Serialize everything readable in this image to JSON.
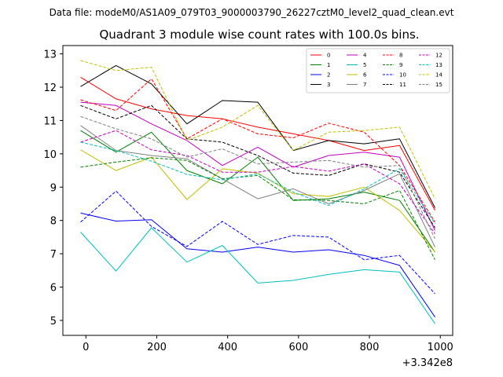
{
  "chart_data": {
    "type": "line",
    "header": "Data file: modeM0/AS1A09_079T03_9000003790_26227cztM0_level2_quad_clean.evt",
    "title": "Quadrant 3 module wise count rates with 100.0s bins.",
    "xlabel": "",
    "ylabel": "",
    "x_offset_label": "+3.342e8",
    "xlim": [
      -65,
      1035
    ],
    "ylim": [
      4.55,
      13.25
    ],
    "x_ticks": [
      0,
      200,
      400,
      600,
      800,
      1000
    ],
    "y_ticks": [
      5,
      6,
      7,
      8,
      9,
      10,
      11,
      12,
      13
    ],
    "x": [
      -15,
      85,
      185,
      285,
      385,
      485,
      585,
      685,
      785,
      885,
      985
    ],
    "legend_location": "upper right",
    "series": [
      {
        "name": "0",
        "color": "#ff0000",
        "dash": "solid",
        "values": [
          12.3,
          11.65,
          11.35,
          11.15,
          11.05,
          10.8,
          10.6,
          10.4,
          10.1,
          10.25,
          8.3
        ]
      },
      {
        "name": "1",
        "color": "#008000",
        "dash": "solid",
        "values": [
          10.7,
          10.05,
          10.65,
          9.5,
          9.1,
          9.9,
          8.6,
          8.65,
          8.85,
          8.6,
          7.05
        ]
      },
      {
        "name": "2",
        "color": "#0000ff",
        "dash": "solid",
        "values": [
          8.22,
          7.98,
          8.02,
          7.15,
          7.05,
          7.2,
          7.05,
          7.12,
          6.95,
          6.65,
          5.1
        ]
      },
      {
        "name": "3",
        "color": "#000000",
        "dash": "solid",
        "values": [
          12.02,
          12.65,
          12.1,
          10.9,
          11.6,
          11.55,
          10.1,
          10.4,
          10.3,
          10.45,
          8.38
        ]
      },
      {
        "name": "4",
        "color": "#bf00bf",
        "dash": "solid",
        "values": [
          11.55,
          11.45,
          10.9,
          10.4,
          9.65,
          10.2,
          9.6,
          9.95,
          10.05,
          9.9,
          7.7
        ]
      },
      {
        "name": "5",
        "color": "#00bfbf",
        "dash": "solid",
        "values": [
          7.65,
          6.48,
          7.78,
          6.75,
          7.25,
          6.12,
          6.2,
          6.38,
          6.52,
          6.45,
          4.9
        ]
      },
      {
        "name": "6",
        "color": "#bfbf00",
        "dash": "solid",
        "values": [
          10.12,
          9.5,
          9.9,
          8.63,
          9.55,
          9.42,
          8.8,
          8.72,
          9.0,
          8.3,
          7.05
        ]
      },
      {
        "name": "7",
        "color": "#808080",
        "dash": "solid",
        "values": [
          10.85,
          10.1,
          9.95,
          9.85,
          9.25,
          8.65,
          8.95,
          8.5,
          8.9,
          9.4,
          7.2
        ]
      },
      {
        "name": "8",
        "color": "#ff0000",
        "dash": "dashed",
        "values": [
          11.62,
          11.3,
          12.25,
          10.45,
          11.05,
          10.6,
          10.48,
          10.92,
          10.65,
          9.65,
          7.95
        ]
      },
      {
        "name": "9",
        "color": "#008000",
        "dash": "dashed",
        "values": [
          9.6,
          9.75,
          9.88,
          9.8,
          9.25,
          9.35,
          8.62,
          8.6,
          8.5,
          8.9,
          6.82
        ]
      },
      {
        "name": "10",
        "color": "#0000ff",
        "dash": "dashed",
        "values": [
          7.95,
          8.88,
          7.82,
          7.22,
          7.97,
          7.28,
          7.55,
          7.5,
          6.82,
          6.95,
          5.8
        ]
      },
      {
        "name": "11",
        "color": "#000000",
        "dash": "dashed",
        "values": [
          11.45,
          11.05,
          11.45,
          10.45,
          10.35,
          9.95,
          9.42,
          9.35,
          9.7,
          9.45,
          7.78
        ]
      },
      {
        "name": "12",
        "color": "#bf00bf",
        "dash": "dashed",
        "values": [
          10.35,
          10.7,
          10.12,
          9.95,
          9.45,
          9.45,
          9.62,
          9.48,
          9.7,
          9.1,
          7.6
        ]
      },
      {
        "name": "13",
        "color": "#00bfbf",
        "dash": "dashed",
        "values": [
          10.35,
          10.1,
          9.78,
          9.38,
          9.22,
          9.4,
          8.85,
          8.45,
          8.95,
          9.55,
          7.9
        ]
      },
      {
        "name": "14",
        "color": "#bfbf00",
        "dash": "dashed",
        "values": [
          12.8,
          12.5,
          12.6,
          10.4,
          10.8,
          11.45,
          10.1,
          10.65,
          10.7,
          10.8,
          8.65
        ]
      },
      {
        "name": "15",
        "color": "#808080",
        "dash": "dashed",
        "values": [
          11.12,
          10.75,
          10.45,
          9.9,
          10.15,
          9.7,
          9.75,
          9.8,
          9.6,
          9.65,
          7.45
        ]
      }
    ]
  }
}
